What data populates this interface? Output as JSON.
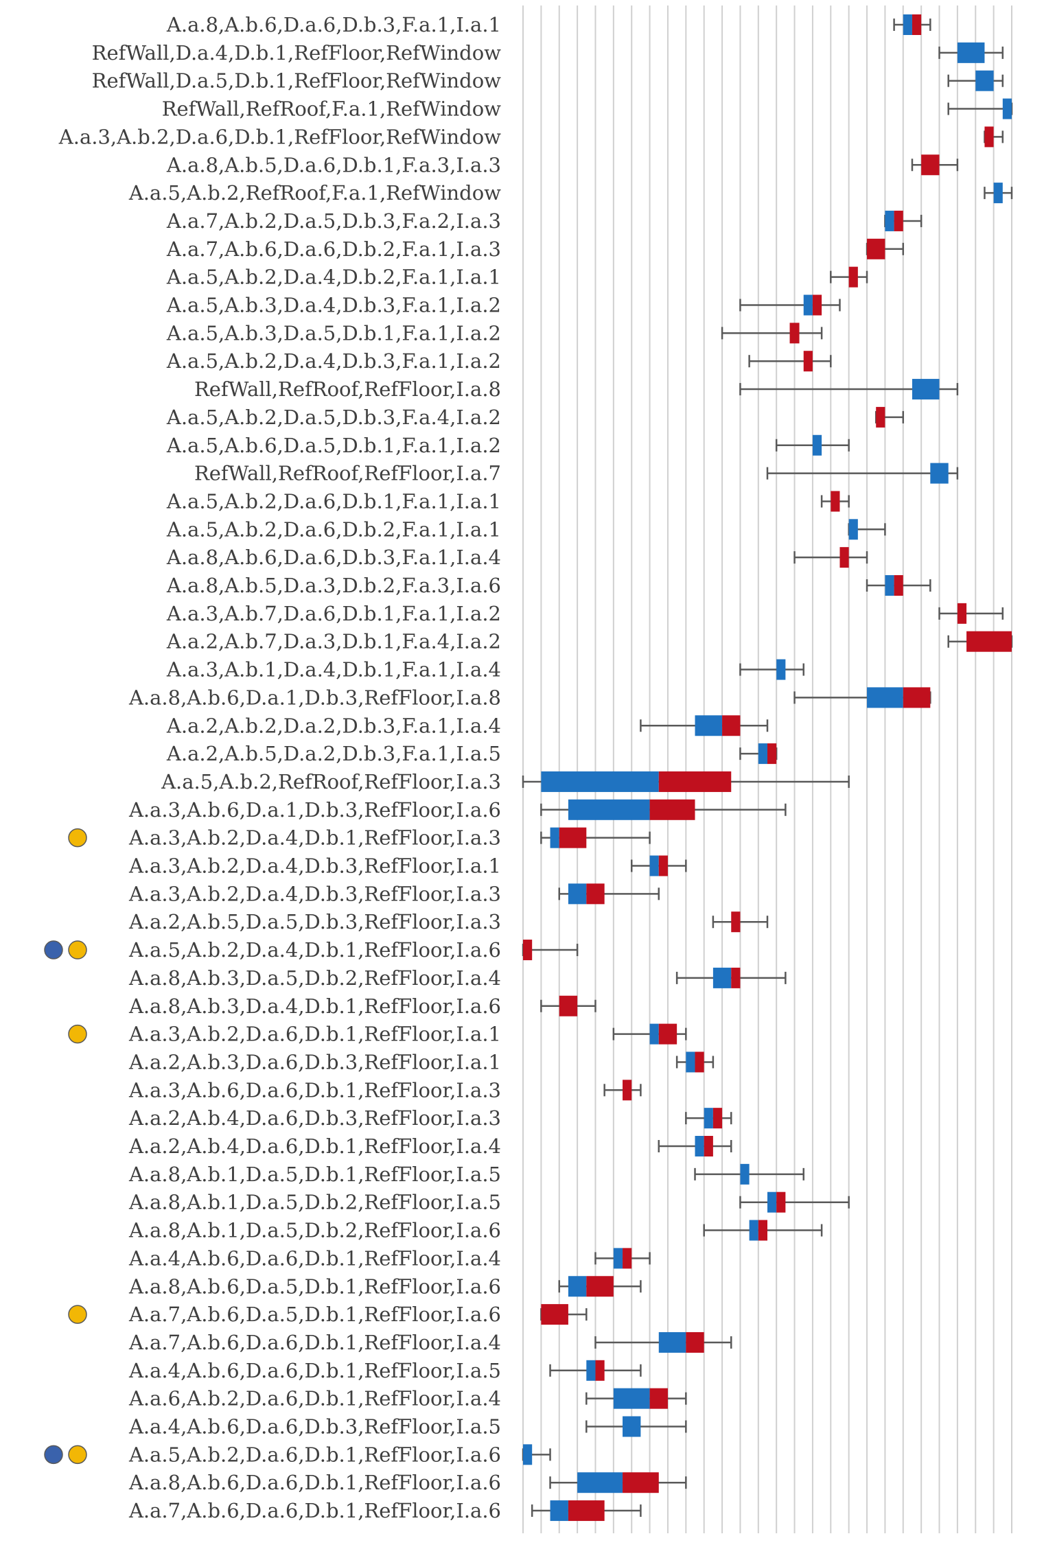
{
  "chart_data": {
    "type": "boxplot",
    "title": "",
    "xlabel": "",
    "ylabel": "",
    "xlim": [
      0,
      27
    ],
    "grid": true,
    "colors": {
      "lower_box": "#1F73C1",
      "upper_box": "#C0101E",
      "whisker": "#595959",
      "gridline": "#D0D0D0",
      "marker_blue": "#3A62AC",
      "marker_gold": "#F2B705"
    },
    "rows": [
      {
        "label": "A.a.8,A.b.6,D.a.6,D.b.3,F.a.1,I.a.1",
        "min": 20.5,
        "q1": 21.0,
        "median": 21.5,
        "q3": 22.0,
        "max": 22.5,
        "markers": []
      },
      {
        "label": "RefWall,D.a.4,D.b.1,RefFloor,RefWindow",
        "min": 23.0,
        "q1": 24.0,
        "median": 25.5,
        "q3": 25.5,
        "max": 26.5,
        "markers": []
      },
      {
        "label": "RefWall,D.a.5,D.b.1,RefFloor,RefWindow",
        "min": 23.5,
        "q1": 25.0,
        "median": 26.0,
        "q3": 26.0,
        "max": 26.5,
        "markers": []
      },
      {
        "label": "RefWall,RefRoof,F.a.1,RefWindow",
        "min": 23.5,
        "q1": 26.5,
        "median": 27.0,
        "q3": 27.0,
        "max": 27.0,
        "markers": []
      },
      {
        "label": "A.a.3,A.b.2,D.a.6,D.b.1,RefFloor,RefWindow",
        "min": 25.5,
        "q1": 25.5,
        "median": 25.5,
        "q3": 26.0,
        "max": 26.5,
        "markers": []
      },
      {
        "label": "A.a.8,A.b.5,D.a.6,D.b.1,F.a.3,I.a.3",
        "min": 21.5,
        "q1": 22.0,
        "median": 22.0,
        "q3": 23.0,
        "max": 24.0,
        "markers": []
      },
      {
        "label": "A.a.5,A.b.2,RefRoof,F.a.1,RefWindow",
        "min": 25.5,
        "q1": 26.0,
        "median": 26.5,
        "q3": 26.5,
        "max": 27.0,
        "markers": []
      },
      {
        "label": "A.a.7,A.b.2,D.a.5,D.b.3,F.a.2,I.a.3",
        "min": 20.0,
        "q1": 20.0,
        "median": 20.5,
        "q3": 21.0,
        "max": 22.0,
        "markers": []
      },
      {
        "label": "A.a.7,A.b.6,D.a.6,D.b.2,F.a.1,I.a.3",
        "min": 19.0,
        "q1": 19.0,
        "median": 19.0,
        "q3": 20.0,
        "max": 21.0,
        "markers": []
      },
      {
        "label": "A.a.5,A.b.2,D.a.4,D.b.2,F.a.1,I.a.1",
        "min": 17.0,
        "q1": 18.0,
        "median": 18.0,
        "q3": 18.5,
        "max": 19.0,
        "markers": []
      },
      {
        "label": "A.a.5,A.b.3,D.a.4,D.b.3,F.a.1,I.a.2",
        "min": 12.0,
        "q1": 15.5,
        "median": 16.0,
        "q3": 16.5,
        "max": 17.5,
        "markers": []
      },
      {
        "label": "A.a.5,A.b.3,D.a.5,D.b.1,F.a.1,I.a.2",
        "min": 11.0,
        "q1": 15.0,
        "median": 15.0,
        "q3": 15.0,
        "max": 16.5,
        "markers": []
      },
      {
        "label": "A.a.5,A.b.2,D.a.4,D.b.3,F.a.1,I.a.2",
        "min": 12.5,
        "q1": 15.5,
        "median": 15.5,
        "q3": 16.0,
        "max": 17.0,
        "markers": []
      },
      {
        "label": "RefWall,RefRoof,RefFloor,I.a.8",
        "min": 12.0,
        "q1": 21.5,
        "median": 23.0,
        "q3": 23.0,
        "max": 24.0,
        "markers": []
      },
      {
        "label": "A.a.5,A.b.2,D.a.5,D.b.3,F.a.4,I.a.2",
        "min": 19.5,
        "q1": 19.5,
        "median": 19.5,
        "q3": 20.0,
        "max": 21.0,
        "markers": []
      },
      {
        "label": "A.a.5,A.b.6,D.a.5,D.b.1,F.a.1,I.a.2",
        "min": 14.0,
        "q1": 16.0,
        "median": 16.5,
        "q3": 16.5,
        "max": 18.0,
        "markers": []
      },
      {
        "label": "RefWall,RefRoof,RefFloor,I.a.7",
        "min": 13.5,
        "q1": 22.5,
        "median": 23.5,
        "q3": 23.5,
        "max": 24.0,
        "markers": []
      },
      {
        "label": "A.a.5,A.b.2,D.a.6,D.b.1,F.a.1,I.a.1",
        "min": 16.5,
        "q1": 17.0,
        "median": 17.0,
        "q3": 17.5,
        "max": 18.0,
        "markers": []
      },
      {
        "label": "A.a.5,A.b.2,D.a.6,D.b.2,F.a.1,I.a.1",
        "min": 18.0,
        "q1": 18.0,
        "median": 18.5,
        "q3": 18.5,
        "max": 20.0,
        "markers": []
      },
      {
        "label": "A.a.8,A.b.6,D.a.6,D.b.3,F.a.1,I.a.4",
        "min": 15.0,
        "q1": 17.5,
        "median": 17.5,
        "q3": 18.0,
        "max": 19.0,
        "markers": []
      },
      {
        "label": "A.a.8,A.b.5,D.a.3,D.b.2,F.a.3,I.a.6",
        "min": 19.0,
        "q1": 20.0,
        "median": 20.5,
        "q3": 21.0,
        "max": 22.5,
        "markers": []
      },
      {
        "label": "A.a.3,A.b.7,D.a.6,D.b.1,F.a.1,I.a.2",
        "min": 23.0,
        "q1": 24.0,
        "median": 24.0,
        "q3": 24.5,
        "max": 26.5,
        "markers": []
      },
      {
        "label": "A.a.2,A.b.7,D.a.3,D.b.1,F.a.4,I.a.2",
        "min": 23.5,
        "q1": 24.5,
        "median": 24.5,
        "q3": 27.0,
        "max": 27.0,
        "markers": []
      },
      {
        "label": "A.a.3,A.b.1,D.a.4,D.b.1,F.a.1,I.a.4",
        "min": 12.0,
        "q1": 14.0,
        "median": 14.5,
        "q3": 14.5,
        "max": 15.5,
        "markers": []
      },
      {
        "label": "A.a.8,A.b.6,D.a.1,D.b.3,RefFloor,I.a.8",
        "min": 15.0,
        "q1": 19.0,
        "median": 21.0,
        "q3": 22.5,
        "max": 22.5,
        "markers": []
      },
      {
        "label": "A.a.2,A.b.2,D.a.2,D.b.3,F.a.1,I.a.4",
        "min": 6.5,
        "q1": 9.5,
        "median": 11.0,
        "q3": 12.0,
        "max": 13.5,
        "markers": []
      },
      {
        "label": "A.a.2,A.b.5,D.a.2,D.b.3,F.a.1,I.a.5",
        "min": 12.0,
        "q1": 13.0,
        "median": 13.5,
        "q3": 14.0,
        "max": 14.0,
        "markers": []
      },
      {
        "label": "A.a.5,A.b.2,RefRoof,RefFloor,I.a.3",
        "min": 0.0,
        "q1": 1.0,
        "median": 7.5,
        "q3": 11.5,
        "max": 18.0,
        "markers": []
      },
      {
        "label": "A.a.3,A.b.6,D.a.1,D.b.3,RefFloor,I.a.6",
        "min": 1.0,
        "q1": 2.5,
        "median": 7.0,
        "q3": 9.5,
        "max": 14.5,
        "markers": []
      },
      {
        "label": "A.a.3,A.b.2,D.a.4,D.b.1,RefFloor,I.a.3",
        "min": 1.0,
        "q1": 1.5,
        "median": 2.0,
        "q3": 3.5,
        "max": 7.0,
        "markers": [
          "gold"
        ]
      },
      {
        "label": "A.a.3,A.b.2,D.a.4,D.b.3,RefFloor,I.a.1",
        "min": 6.0,
        "q1": 7.0,
        "median": 7.5,
        "q3": 8.0,
        "max": 9.0,
        "markers": []
      },
      {
        "label": "A.a.3,A.b.2,D.a.4,D.b.3,RefFloor,I.a.3",
        "min": 2.0,
        "q1": 2.5,
        "median": 3.5,
        "q3": 4.5,
        "max": 7.5,
        "markers": []
      },
      {
        "label": "A.a.2,A.b.5,D.a.5,D.b.3,RefFloor,I.a.3",
        "min": 10.5,
        "q1": 11.5,
        "median": 11.5,
        "q3": 12.0,
        "max": 13.5,
        "markers": []
      },
      {
        "label": "A.a.5,A.b.2,D.a.4,D.b.1,RefFloor,I.a.6",
        "min": 0.0,
        "q1": 0.0,
        "median": 0.0,
        "q3": 0.5,
        "max": 3.0,
        "markers": [
          "blue",
          "gold"
        ]
      },
      {
        "label": "A.a.8,A.b.3,D.a.5,D.b.2,RefFloor,I.a.4",
        "min": 8.5,
        "q1": 10.5,
        "median": 11.5,
        "q3": 12.0,
        "max": 14.5,
        "markers": []
      },
      {
        "label": "A.a.8,A.b.3,D.a.4,D.b.1,RefFloor,I.a.6",
        "min": 1.0,
        "q1": 2.0,
        "median": 2.0,
        "q3": 3.0,
        "max": 4.0,
        "markers": []
      },
      {
        "label": "A.a.3,A.b.2,D.a.6,D.b.1,RefFloor,I.a.1",
        "min": 5.0,
        "q1": 7.0,
        "median": 7.5,
        "q3": 8.5,
        "max": 9.0,
        "markers": [
          "gold"
        ]
      },
      {
        "label": "A.a.2,A.b.3,D.a.6,D.b.3,RefFloor,I.a.1",
        "min": 8.5,
        "q1": 9.0,
        "median": 9.5,
        "q3": 10.0,
        "max": 10.5,
        "markers": []
      },
      {
        "label": "A.a.3,A.b.6,D.a.6,D.b.1,RefFloor,I.a.3",
        "min": 4.5,
        "q1": 5.5,
        "median": 5.5,
        "q3": 6.0,
        "max": 6.5,
        "markers": []
      },
      {
        "label": "A.a.2,A.b.4,D.a.6,D.b.3,RefFloor,I.a.3",
        "min": 9.0,
        "q1": 10.0,
        "median": 10.5,
        "q3": 11.0,
        "max": 11.5,
        "markers": []
      },
      {
        "label": "A.a.2,A.b.4,D.a.6,D.b.1,RefFloor,I.a.4",
        "min": 7.5,
        "q1": 9.5,
        "median": 10.0,
        "q3": 10.5,
        "max": 11.5,
        "markers": []
      },
      {
        "label": "A.a.8,A.b.1,D.a.5,D.b.1,RefFloor,I.a.5",
        "min": 9.5,
        "q1": 12.0,
        "median": 12.5,
        "q3": 12.5,
        "max": 15.5,
        "markers": []
      },
      {
        "label": "A.a.8,A.b.1,D.a.5,D.b.2,RefFloor,I.a.5",
        "min": 12.0,
        "q1": 13.5,
        "median": 14.0,
        "q3": 14.5,
        "max": 18.0,
        "markers": []
      },
      {
        "label": "A.a.8,A.b.1,D.a.5,D.b.2,RefFloor,I.a.6",
        "min": 10.0,
        "q1": 12.5,
        "median": 13.0,
        "q3": 13.5,
        "max": 16.5,
        "markers": []
      },
      {
        "label": "A.a.4,A.b.6,D.a.6,D.b.1,RefFloor,I.a.4",
        "min": 4.0,
        "q1": 5.0,
        "median": 5.5,
        "q3": 6.0,
        "max": 7.0,
        "markers": []
      },
      {
        "label": "A.a.8,A.b.6,D.a.5,D.b.1,RefFloor,I.a.6",
        "min": 2.0,
        "q1": 2.5,
        "median": 3.5,
        "q3": 5.0,
        "max": 6.5,
        "markers": []
      },
      {
        "label": "A.a.7,A.b.6,D.a.5,D.b.1,RefFloor,I.a.6",
        "min": 1.0,
        "q1": 1.0,
        "median": 1.0,
        "q3": 2.5,
        "max": 3.5,
        "markers": [
          "gold"
        ]
      },
      {
        "label": "A.a.7,A.b.6,D.a.6,D.b.1,RefFloor,I.a.4",
        "min": 4.0,
        "q1": 7.5,
        "median": 9.0,
        "q3": 10.0,
        "max": 11.5,
        "markers": []
      },
      {
        "label": "A.a.4,A.b.6,D.a.6,D.b.1,RefFloor,I.a.5",
        "min": 1.5,
        "q1": 3.5,
        "median": 4.0,
        "q3": 4.5,
        "max": 6.5,
        "markers": []
      },
      {
        "label": "A.a.6,A.b.2,D.a.6,D.b.1,RefFloor,I.a.4",
        "min": 3.5,
        "q1": 5.0,
        "median": 7.0,
        "q3": 8.0,
        "max": 9.0,
        "markers": []
      },
      {
        "label": "A.a.4,A.b.6,D.a.6,D.b.3,RefFloor,I.a.5",
        "min": 3.5,
        "q1": 5.5,
        "median": 6.5,
        "q3": 6.5,
        "max": 9.0,
        "markers": []
      },
      {
        "label": "A.a.5,A.b.2,D.a.6,D.b.1,RefFloor,I.a.6",
        "min": 0.0,
        "q1": 0.0,
        "median": 0.5,
        "q3": 0.5,
        "max": 1.5,
        "markers": [
          "blue",
          "gold"
        ]
      },
      {
        "label": "A.a.8,A.b.6,D.a.6,D.b.1,RefFloor,I.a.6",
        "min": 1.5,
        "q1": 3.0,
        "median": 5.5,
        "q3": 7.5,
        "max": 9.0,
        "markers": []
      },
      {
        "label": "A.a.7,A.b.6,D.a.6,D.b.1,RefFloor,I.a.6",
        "min": 0.5,
        "q1": 1.5,
        "median": 2.5,
        "q3": 4.5,
        "max": 6.5,
        "markers": []
      }
    ]
  }
}
